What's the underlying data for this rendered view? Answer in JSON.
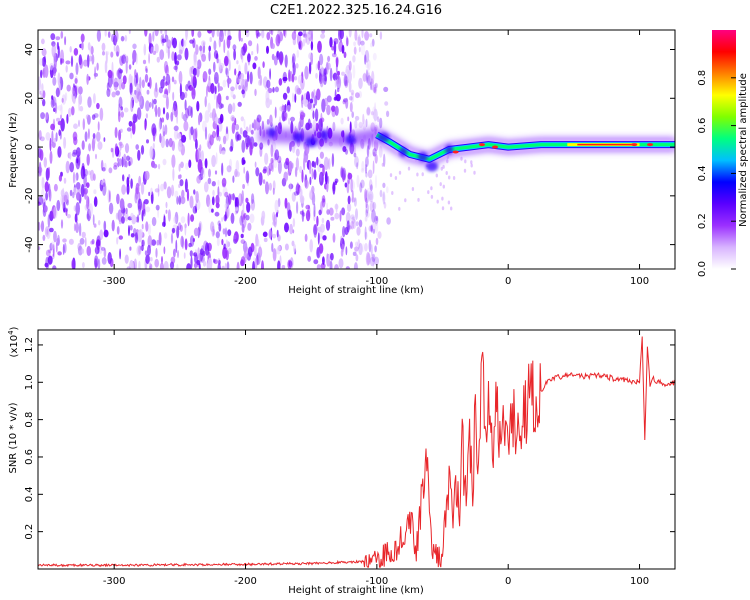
{
  "title": "C2E1.2022.325.16.24.G16",
  "chart_data": [
    {
      "type": "heatmap",
      "name": "spectrogram",
      "xlabel": "Height of straight line (km)",
      "ylabel": "Frequency (Hz)",
      "xlim": [
        -358,
        127
      ],
      "ylim": [
        -50,
        48
      ],
      "xticks": [
        -300,
        -200,
        -100,
        0,
        100
      ],
      "xtick_labels": [
        "-300",
        "-200",
        "-100",
        "0",
        "100"
      ],
      "yticks": [
        -40,
        -20,
        0,
        20,
        40
      ],
      "ytick_labels": [
        "-40",
        "-20",
        "0",
        "20",
        "40"
      ],
      "noise_region_x": [
        -358,
        -100
      ],
      "signal_ridge": [
        {
          "x": -190,
          "y": 5
        },
        {
          "x": -150,
          "y": 4
        },
        {
          "x": -120,
          "y": 3
        },
        {
          "x": -100,
          "y": 5
        },
        {
          "x": -90,
          "y": 2
        },
        {
          "x": -75,
          "y": -3
        },
        {
          "x": -60,
          "y": -5
        },
        {
          "x": -45,
          "y": -1
        },
        {
          "x": -30,
          "y": 0
        },
        {
          "x": -15,
          "y": 1
        },
        {
          "x": 0,
          "y": 0
        },
        {
          "x": 25,
          "y": 1
        },
        {
          "x": 50,
          "y": 1
        },
        {
          "x": 75,
          "y": 1
        },
        {
          "x": 100,
          "y": 1
        },
        {
          "x": 127,
          "y": 1
        }
      ],
      "colorbar": {
        "label": "Normalized spectral amplitude",
        "range": [
          0,
          1
        ],
        "ticks": [
          0.0,
          0.2,
          0.4,
          0.6,
          0.8
        ],
        "tick_labels": [
          "0.0",
          "0.2",
          "0.4",
          "0.6",
          "0.8"
        ],
        "colors": [
          "#ffffff",
          "#d8b4ff",
          "#9b30ff",
          "#5a00ff",
          "#0000ff",
          "#00bfff",
          "#00ff80",
          "#80ff00",
          "#ffff00",
          "#ff8000",
          "#ff0000",
          "#ff0080"
        ]
      }
    },
    {
      "type": "line",
      "name": "snr",
      "xlabel": "Height of straight line (km)",
      "ylabel": "SNR (10 * v/v)",
      "scale_label": "(x10",
      "scale_exponent": "4",
      "scale_close": ")",
      "xlim": [
        -358,
        127
      ],
      "ylim": [
        0,
        1.28
      ],
      "xticks": [
        -300,
        -200,
        -100,
        0,
        100
      ],
      "xtick_labels": [
        "-300",
        "-200",
        "-100",
        "0",
        "100"
      ],
      "yticks": [
        0.2,
        0.4,
        0.6,
        0.8,
        1.0,
        1.2
      ],
      "ytick_labels": [
        "0.2",
        "0.4",
        "0.6",
        "0.8",
        "1.0",
        "1.2"
      ],
      "color": "#e8262a",
      "series": [
        {
          "name": "SNR",
          "x": [
            -358,
            -300,
            -200,
            -150,
            -110,
            -95,
            -85,
            -80,
            -75,
            -70,
            -65,
            -62,
            -60,
            -58,
            -55,
            -52,
            -50,
            -47,
            -45,
            -42,
            -40,
            -37,
            -35,
            -32,
            -30,
            -27,
            -25,
            -22,
            -20,
            -17,
            -15,
            -12,
            -10,
            -7,
            -5,
            -2,
            0,
            5,
            10,
            15,
            20,
            25,
            30,
            35,
            40,
            50,
            60,
            70,
            80,
            90,
            100,
            102,
            104,
            106,
            108,
            110,
            115,
            120,
            127
          ],
          "y": [
            0.02,
            0.02,
            0.025,
            0.03,
            0.04,
            0.07,
            0.12,
            0.18,
            0.3,
            0.1,
            0.45,
            0.58,
            0.3,
            0.15,
            0.08,
            0.05,
            0.1,
            0.3,
            0.45,
            0.25,
            0.5,
            0.3,
            0.65,
            0.4,
            0.75,
            0.45,
            0.85,
            0.55,
            1.1,
            0.6,
            0.9,
            0.65,
            0.88,
            0.72,
            0.82,
            0.75,
            0.78,
            0.8,
            0.85,
            0.88,
            0.92,
            0.96,
            1.0,
            1.02,
            1.03,
            1.04,
            1.03,
            1.04,
            1.02,
            1.01,
            1.0,
            1.25,
            0.68,
            1.2,
            0.98,
            1.02,
            1.0,
            0.99,
            1.0
          ]
        }
      ]
    }
  ]
}
